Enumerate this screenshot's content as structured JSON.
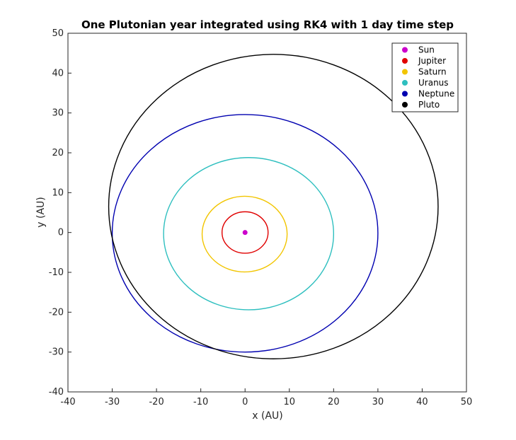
{
  "chart_data": {
    "type": "line",
    "title": "One Plutonian year integrated using RK4 with 1 day time step",
    "xlabel": "x (AU)",
    "ylabel": "y (AU)",
    "xlim": [
      -40,
      50
    ],
    "ylim": [
      -40,
      50
    ],
    "xticks": [
      "-40",
      "-30",
      "-20",
      "-10",
      "0",
      "10",
      "20",
      "30",
      "40",
      "50"
    ],
    "yticks": [
      "-40",
      "-30",
      "-20",
      "-10",
      "0",
      "10",
      "20",
      "30",
      "40",
      "50"
    ],
    "grid": false,
    "legend_position": "top-right",
    "series": [
      {
        "name": "Sun",
        "color": "#cc00cc",
        "orbit": {
          "cx": 0,
          "cy": 0,
          "rx": 0.3,
          "ry": 0.3
        }
      },
      {
        "name": "Jupiter",
        "color": "#e00000",
        "orbit": {
          "cx": 0,
          "cy": 0,
          "rx": 5.2,
          "ry": 5.2
        }
      },
      {
        "name": "Saturn",
        "color": "#f2c500",
        "orbit": {
          "cx": -0.1,
          "cy": -0.4,
          "rx": 9.6,
          "ry": 9.5
        }
      },
      {
        "name": "Uranus",
        "color": "#2ebfbf",
        "orbit": {
          "cx": 0.8,
          "cy": -0.3,
          "rx": 19.2,
          "ry": 19.1
        }
      },
      {
        "name": "Neptune",
        "color": "#0000b0",
        "orbit": {
          "cx": 0,
          "cy": -0.2,
          "rx": 30.0,
          "ry": 29.8
        }
      },
      {
        "name": "Pluto",
        "color": "#000000",
        "orbit": {
          "cx": 6.4,
          "cy": 6.5,
          "rx": 37.2,
          "ry": 38.2
        }
      }
    ]
  }
}
